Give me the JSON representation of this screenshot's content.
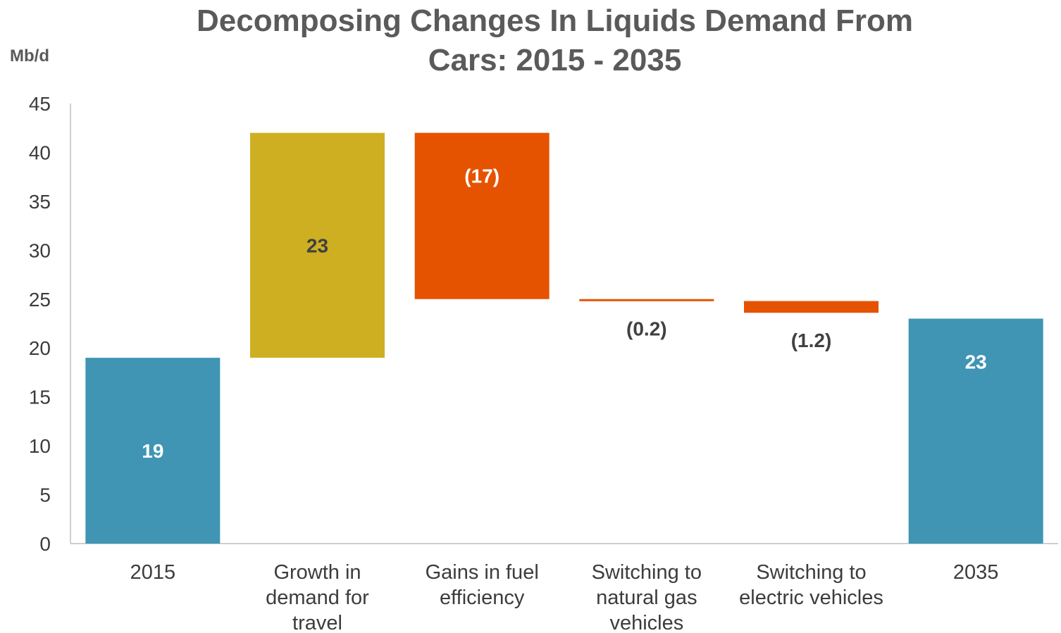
{
  "chart_data": {
    "type": "bar",
    "subtype": "waterfall",
    "title_lines": [
      "Decomposing Changes In Liquids Demand From",
      "Cars: 2015 - 2035"
    ],
    "ylabel": "Mb/d",
    "ylim": [
      0,
      45
    ],
    "yticks": [
      0,
      5,
      10,
      15,
      20,
      25,
      30,
      35,
      40,
      45
    ],
    "grid": false,
    "legend": "none",
    "categories": [
      [
        "2015"
      ],
      [
        "Growth in",
        "demand for",
        "travel"
      ],
      [
        "Gains in fuel",
        "efficiency"
      ],
      [
        "Switching to",
        "natural gas",
        "vehicles"
      ],
      [
        "Switching to",
        "electric vehicles"
      ],
      [
        "2035"
      ]
    ],
    "bars": [
      {
        "start": 0,
        "end": 19,
        "label": "19",
        "color": "#3f95b3",
        "label_color": "#ffffff",
        "label_pos": "inside"
      },
      {
        "start": 19,
        "end": 42,
        "label": "23",
        "color": "#cfaf22",
        "label_color": "#404040",
        "label_pos": "inside"
      },
      {
        "start": 42,
        "end": 25,
        "label": "(17)",
        "color": "#e55300",
        "label_color": "#ffffff",
        "label_pos": "inside-top"
      },
      {
        "start": 25,
        "end": 24.8,
        "label": "(0.2)",
        "color": "#e55300",
        "label_color": "#404040",
        "label_pos": "below"
      },
      {
        "start": 24.8,
        "end": 23.6,
        "label": "(1.2)",
        "color": "#e55300",
        "label_color": "#404040",
        "label_pos": "below"
      },
      {
        "start": 0,
        "end": 23,
        "label": "23",
        "color": "#3f95b3",
        "label_color": "#ffffff",
        "label_pos": "inside-top"
      }
    ],
    "axis_color": "#bfbfbf",
    "text_color": "#3c3c3c"
  }
}
